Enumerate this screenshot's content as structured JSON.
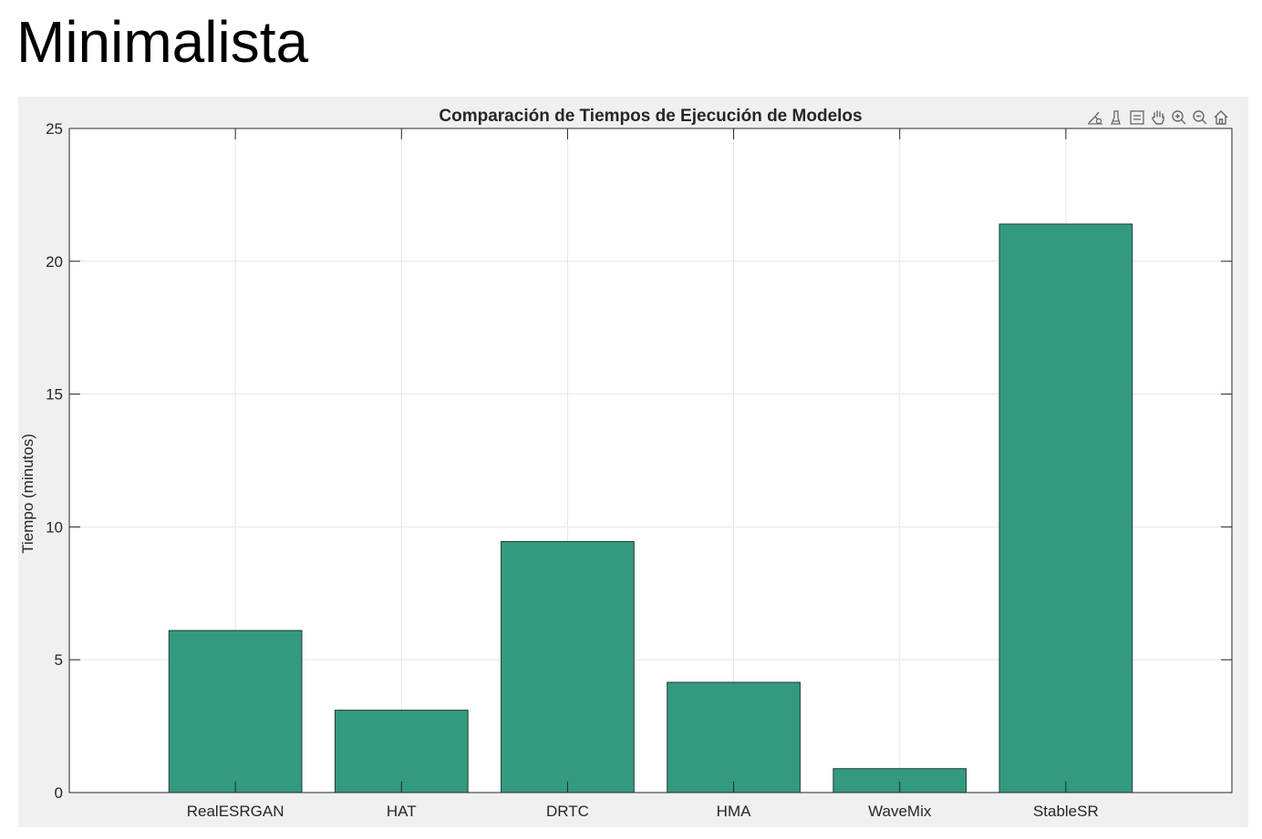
{
  "page": {
    "heading": "Minimalista"
  },
  "toolbar": {
    "icons": [
      "data-tips-icon",
      "brush-icon",
      "legend-icon",
      "pan-hand-icon",
      "zoom-in-icon",
      "zoom-out-icon",
      "home-icon"
    ]
  },
  "colors": {
    "bar_fill": "#339a80",
    "bar_edge": "#1f3b33",
    "figure_bg": "#f0f0f0",
    "axes_bg": "#ffffff",
    "grid": "#e6e6e6"
  },
  "chart_data": {
    "type": "bar",
    "title": "Comparación de Tiempos de Ejecución de Modelos",
    "xlabel": "",
    "ylabel": "Tiempo (minutos)",
    "categories": [
      "RealESRGAN",
      "HAT",
      "DRTC",
      "HMA",
      "WaveMix",
      "StableSR"
    ],
    "values": [
      6.1,
      3.1,
      9.45,
      4.15,
      0.9,
      21.4
    ],
    "ylim": [
      0,
      25
    ],
    "yticks": [
      0,
      5,
      10,
      15,
      20,
      25
    ],
    "grid": true,
    "legend": "none"
  }
}
